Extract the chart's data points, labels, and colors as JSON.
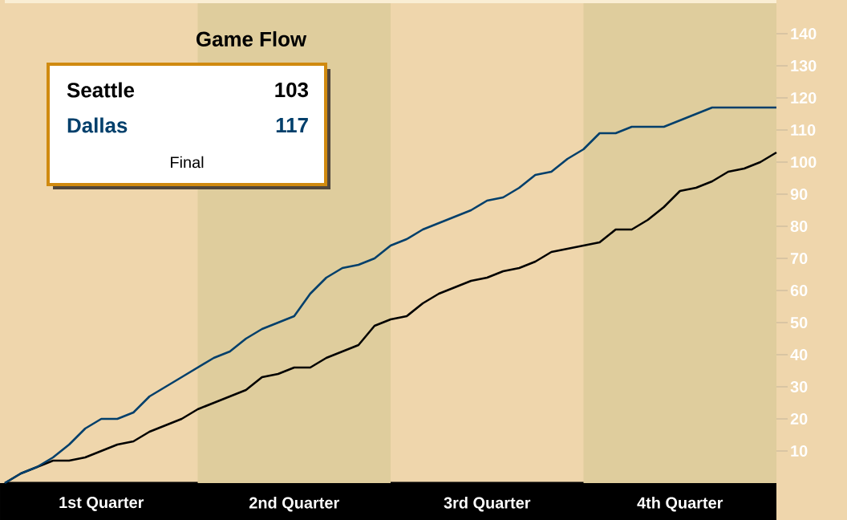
{
  "chart_data": {
    "type": "line",
    "title": "Game Flow",
    "legend": "top left",
    "marker": "none",
    "line_style": "solid",
    "categories": [
      null,
      null,
      null,
      null,
      null,
      null,
      "1st Quarter",
      null,
      null,
      null,
      null,
      null,
      null,
      null,
      null,
      null,
      null,
      null,
      "2nd Quarter",
      null,
      null,
      null,
      null,
      null,
      null,
      null,
      null,
      null,
      null,
      null,
      "3rd Quarter",
      null,
      null,
      null,
      null,
      null,
      null,
      null,
      null,
      null,
      null,
      null,
      "4th Quarter",
      null,
      null,
      null,
      null,
      null,
      null
    ],
    "ylim": [
      0,
      150
    ],
    "yticks": [
      10,
      20,
      30,
      40,
      50,
      60,
      70,
      80,
      90,
      100,
      110,
      120,
      130,
      140
    ],
    "series": [
      {
        "name": "Seattle",
        "color": "#000000",
        "values": [
          0,
          3,
          5,
          7,
          7,
          8,
          10,
          12,
          13,
          16,
          18,
          20,
          23,
          25,
          27,
          29,
          33,
          34,
          36,
          36,
          39,
          41,
          43,
          49,
          51,
          52,
          56,
          59,
          61,
          63,
          64,
          66,
          67,
          69,
          72,
          73,
          74,
          75,
          79,
          79,
          82,
          86,
          91,
          92,
          94,
          97,
          98,
          100,
          103
        ]
      },
      {
        "name": "Dallas",
        "color": "#003f6b",
        "values": [
          0,
          3,
          5,
          8,
          12,
          17,
          20,
          20,
          22,
          27,
          30,
          33,
          36,
          39,
          41,
          45,
          48,
          50,
          52,
          59,
          64,
          67,
          68,
          70,
          74,
          76,
          79,
          81,
          83,
          85,
          88,
          89,
          92,
          96,
          97,
          101,
          104,
          109,
          109,
          111,
          111,
          111,
          113,
          115,
          117,
          117,
          117,
          117,
          117
        ]
      }
    ],
    "annotations": [
      "103",
      "117",
      "Final"
    ]
  }
}
